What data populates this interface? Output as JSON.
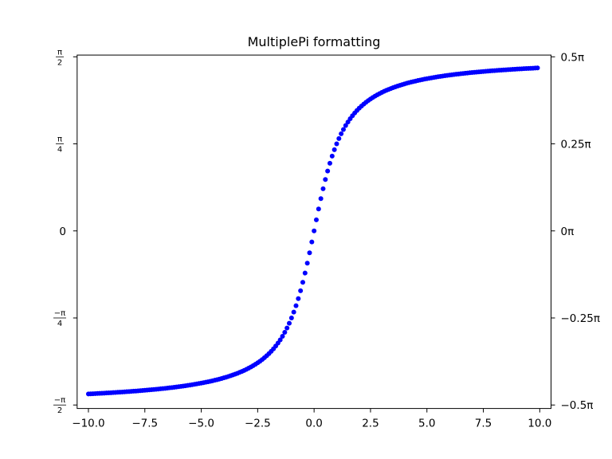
{
  "chart_data": {
    "type": "scatter",
    "title": "MultiplePi formatting",
    "xlabel": "",
    "ylabel": "",
    "xlim": [
      -10.5,
      10.5
    ],
    "ylim_pi": [
      -0.51,
      0.505
    ],
    "x_ticks": [
      {
        "value": -10.0,
        "label": "−10.0"
      },
      {
        "value": -7.5,
        "label": "−7.5"
      },
      {
        "value": -5.0,
        "label": "−5.0"
      },
      {
        "value": -2.5,
        "label": "−2.5"
      },
      {
        "value": 0.0,
        "label": "0.0"
      },
      {
        "value": 2.5,
        "label": "2.5"
      },
      {
        "value": 5.0,
        "label": "5.0"
      },
      {
        "value": 7.5,
        "label": "7.5"
      },
      {
        "value": 10.0,
        "label": "10.0"
      }
    ],
    "y_left_ticks": [
      {
        "value_pi": 0.5,
        "numerator": "π",
        "denominator": "2",
        "plain": ""
      },
      {
        "value_pi": 0.25,
        "numerator": "π",
        "denominator": "4",
        "plain": ""
      },
      {
        "value_pi": 0.0,
        "numerator": "",
        "denominator": "",
        "plain": "0"
      },
      {
        "value_pi": -0.25,
        "numerator": "−π",
        "denominator": "4",
        "plain": ""
      },
      {
        "value_pi": -0.5,
        "numerator": "−π",
        "denominator": "2",
        "plain": ""
      }
    ],
    "y_right_ticks": [
      {
        "value_pi": 0.5,
        "label": "0.5π"
      },
      {
        "value_pi": 0.25,
        "label": "0.25π"
      },
      {
        "value_pi": 0.0,
        "label": "0π"
      },
      {
        "value_pi": -0.25,
        "label": "−0.25π"
      },
      {
        "value_pi": -0.5,
        "label": "−0.5π"
      }
    ],
    "series": [
      {
        "function": "arctan(x)",
        "marker": "circle",
        "color": "#0000ff",
        "x_start": -10.0,
        "x_end": 9.9,
        "x_step": 0.1
      }
    ],
    "grid": false,
    "legend": "none"
  }
}
